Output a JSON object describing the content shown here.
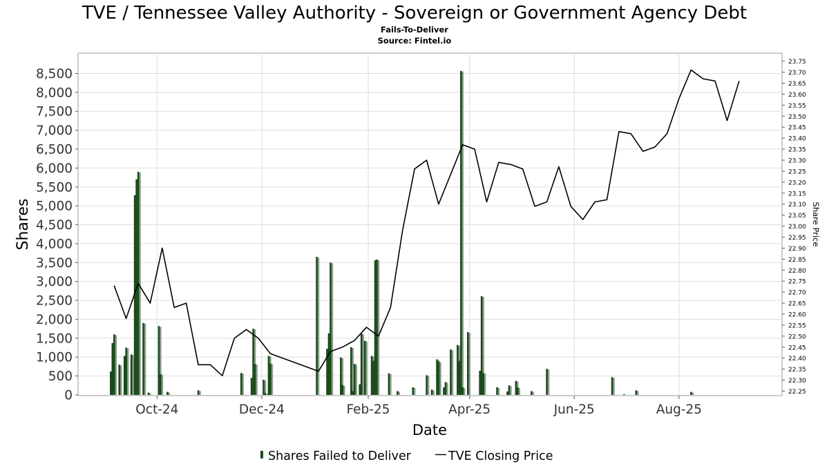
{
  "chart_data": {
    "type": "bar",
    "title": "TVE / Tennessee Valley Authority - Sovereign or Government Agency Debt",
    "subtitle": "Fails-To-Deliver",
    "source": "Source: Fintel.io",
    "xlabel": "Date",
    "ylabel": "Shares",
    "y2label": "Share Price",
    "ylim": [
      0,
      8900
    ],
    "y2lim": [
      22.24,
      23.76
    ],
    "grid": true,
    "legend_placement": "bottom-center",
    "x_range": [
      "2024-08-16",
      "2025-09-30"
    ],
    "x_ticks": [
      {
        "date": "2024-10-01",
        "label": "Oct-24"
      },
      {
        "date": "2024-12-01",
        "label": "Dec-24"
      },
      {
        "date": "2025-02-01",
        "label": "Feb-25"
      },
      {
        "date": "2025-04-01",
        "label": "Apr-25"
      },
      {
        "date": "2025-06-01",
        "label": "Jun-25"
      },
      {
        "date": "2025-08-01",
        "label": "Aug-25"
      }
    ],
    "y_ticks": [
      0,
      500,
      1000,
      1500,
      2000,
      2500,
      3000,
      3500,
      4000,
      4500,
      5000,
      5500,
      6000,
      6500,
      7000,
      7500,
      8000,
      8500
    ],
    "y_tick_labels": [
      "0",
      "500",
      "1,000",
      "1,500",
      "2,000",
      "2,500",
      "3,000",
      "3,500",
      "4,000",
      "4,500",
      "5,000",
      "5,500",
      "6,000",
      "6,500",
      "7,000",
      "7,500",
      "8,000",
      "8,500"
    ],
    "y2_ticks": [
      "22.25",
      "22.30",
      "22.35",
      "22.40",
      "22.45",
      "22.50",
      "22.55",
      "22.60",
      "22.65",
      "22.70",
      "22.75",
      "22.80",
      "22.85",
      "22.90",
      "22.95",
      "23.00",
      "23.05",
      "23.10",
      "23.15",
      "23.20",
      "23.25",
      "23.30",
      "23.35",
      "23.40",
      "23.45",
      "23.50",
      "23.55",
      "23.60",
      "23.65",
      "23.70",
      "23.75"
    ],
    "colors": {
      "bar": "#1a4a1a",
      "bar_shadow": "#8a9a8a",
      "line": "#000000",
      "grid": "#dedede"
    },
    "series": [
      {
        "name": "Shares Failed to Deliver",
        "type": "bar",
        "points": [
          {
            "x": "2024-09-04",
            "y": 620
          },
          {
            "x": "2024-09-05",
            "y": 1370
          },
          {
            "x": "2024-09-06",
            "y": 1600
          },
          {
            "x": "2024-09-09",
            "y": 800
          },
          {
            "x": "2024-09-12",
            "y": 1030
          },
          {
            "x": "2024-09-13",
            "y": 1250
          },
          {
            "x": "2024-09-16",
            "y": 1070
          },
          {
            "x": "2024-09-18",
            "y": 5280
          },
          {
            "x": "2024-09-19",
            "y": 5700
          },
          {
            "x": "2024-09-20",
            "y": 5900
          },
          {
            "x": "2024-09-23",
            "y": 1900
          },
          {
            "x": "2024-09-26",
            "y": 60
          },
          {
            "x": "2024-10-02",
            "y": 1820
          },
          {
            "x": "2024-10-03",
            "y": 550
          },
          {
            "x": "2024-10-07",
            "y": 80
          },
          {
            "x": "2024-10-25",
            "y": 120
          },
          {
            "x": "2024-11-19",
            "y": 580
          },
          {
            "x": "2024-11-25",
            "y": 450
          },
          {
            "x": "2024-11-26",
            "y": 1750
          },
          {
            "x": "2024-11-27",
            "y": 820
          },
          {
            "x": "2024-12-02",
            "y": 400
          },
          {
            "x": "2024-12-03",
            "y": 50
          },
          {
            "x": "2024-12-05",
            "y": 1030
          },
          {
            "x": "2024-12-06",
            "y": 830
          },
          {
            "x": "2025-01-02",
            "y": 3650
          },
          {
            "x": "2025-01-08",
            "y": 1220
          },
          {
            "x": "2025-01-09",
            "y": 1630
          },
          {
            "x": "2025-01-10",
            "y": 3500
          },
          {
            "x": "2025-01-16",
            "y": 990
          },
          {
            "x": "2025-01-17",
            "y": 260
          },
          {
            "x": "2025-01-22",
            "y": 1260
          },
          {
            "x": "2025-01-23",
            "y": 100
          },
          {
            "x": "2025-01-24",
            "y": 820
          },
          {
            "x": "2025-01-27",
            "y": 280
          },
          {
            "x": "2025-01-28",
            "y": 1620
          },
          {
            "x": "2025-01-30",
            "y": 1430
          },
          {
            "x": "2025-02-03",
            "y": 1030
          },
          {
            "x": "2025-02-04",
            "y": 900
          },
          {
            "x": "2025-02-05",
            "y": 3560
          },
          {
            "x": "2025-02-06",
            "y": 3580
          },
          {
            "x": "2025-02-13",
            "y": 570
          },
          {
            "x": "2025-02-18",
            "y": 100
          },
          {
            "x": "2025-02-27",
            "y": 200
          },
          {
            "x": "2025-03-07",
            "y": 520
          },
          {
            "x": "2025-03-10",
            "y": 140
          },
          {
            "x": "2025-03-13",
            "y": 940
          },
          {
            "x": "2025-03-14",
            "y": 880
          },
          {
            "x": "2025-03-17",
            "y": 200
          },
          {
            "x": "2025-03-18",
            "y": 340
          },
          {
            "x": "2025-03-21",
            "y": 1200
          },
          {
            "x": "2025-03-25",
            "y": 1320
          },
          {
            "x": "2025-03-26",
            "y": 900
          },
          {
            "x": "2025-03-27",
            "y": 8570
          },
          {
            "x": "2025-03-28",
            "y": 200
          },
          {
            "x": "2025-03-31",
            "y": 1660
          },
          {
            "x": "2025-04-07",
            "y": 640
          },
          {
            "x": "2025-04-08",
            "y": 2610
          },
          {
            "x": "2025-04-09",
            "y": 580
          },
          {
            "x": "2025-04-17",
            "y": 200
          },
          {
            "x": "2025-04-23",
            "y": 90
          },
          {
            "x": "2025-04-24",
            "y": 250
          },
          {
            "x": "2025-04-28",
            "y": 370
          },
          {
            "x": "2025-04-29",
            "y": 200
          },
          {
            "x": "2025-05-07",
            "y": 100
          },
          {
            "x": "2025-05-16",
            "y": 690
          },
          {
            "x": "2025-06-23",
            "y": 470
          },
          {
            "x": "2025-06-30",
            "y": 20
          },
          {
            "x": "2025-07-07",
            "y": 120
          },
          {
            "x": "2025-08-08",
            "y": 80
          }
        ]
      },
      {
        "name": "TVE Closing Price",
        "type": "line",
        "points": [
          {
            "x": "2024-09-06",
            "y": 22.73
          },
          {
            "x": "2024-09-13",
            "y": 22.58
          },
          {
            "x": "2024-09-20",
            "y": 22.74
          },
          {
            "x": "2024-09-27",
            "y": 22.65
          },
          {
            "x": "2024-10-04",
            "y": 22.9
          },
          {
            "x": "2024-10-11",
            "y": 22.63
          },
          {
            "x": "2024-10-18",
            "y": 22.65
          },
          {
            "x": "2024-10-25",
            "y": 22.37
          },
          {
            "x": "2024-11-01",
            "y": 22.37
          },
          {
            "x": "2024-11-08",
            "y": 22.32
          },
          {
            "x": "2024-11-15",
            "y": 22.49
          },
          {
            "x": "2024-11-22",
            "y": 22.53
          },
          {
            "x": "2024-11-29",
            "y": 22.49
          },
          {
            "x": "2024-12-06",
            "y": 22.42
          },
          {
            "x": "2025-01-03",
            "y": 22.34
          },
          {
            "x": "2025-01-10",
            "y": 22.43
          },
          {
            "x": "2025-01-17",
            "y": 22.45
          },
          {
            "x": "2025-01-24",
            "y": 22.48
          },
          {
            "x": "2025-01-31",
            "y": 22.54
          },
          {
            "x": "2025-02-07",
            "y": 22.5
          },
          {
            "x": "2025-02-14",
            "y": 22.63
          },
          {
            "x": "2025-02-21",
            "y": 22.98
          },
          {
            "x": "2025-02-28",
            "y": 23.26
          },
          {
            "x": "2025-03-07",
            "y": 23.3
          },
          {
            "x": "2025-03-14",
            "y": 23.1
          },
          {
            "x": "2025-03-28",
            "y": 23.37
          },
          {
            "x": "2025-04-04",
            "y": 23.35
          },
          {
            "x": "2025-04-11",
            "y": 23.11
          },
          {
            "x": "2025-04-18",
            "y": 23.29
          },
          {
            "x": "2025-04-25",
            "y": 23.28
          },
          {
            "x": "2025-05-02",
            "y": 23.26
          },
          {
            "x": "2025-05-09",
            "y": 23.09
          },
          {
            "x": "2025-05-16",
            "y": 23.11
          },
          {
            "x": "2025-05-23",
            "y": 23.27
          },
          {
            "x": "2025-05-30",
            "y": 23.09
          },
          {
            "x": "2025-06-06",
            "y": 23.03
          },
          {
            "x": "2025-06-13",
            "y": 23.11
          },
          {
            "x": "2025-06-20",
            "y": 23.12
          },
          {
            "x": "2025-06-27",
            "y": 23.43
          },
          {
            "x": "2025-07-04",
            "y": 23.42
          },
          {
            "x": "2025-07-11",
            "y": 23.34
          },
          {
            "x": "2025-07-18",
            "y": 23.36
          },
          {
            "x": "2025-07-25",
            "y": 23.42
          },
          {
            "x": "2025-08-01",
            "y": 23.58
          },
          {
            "x": "2025-08-08",
            "y": 23.71
          },
          {
            "x": "2025-08-15",
            "y": 23.67
          },
          {
            "x": "2025-08-22",
            "y": 23.66
          },
          {
            "x": "2025-08-29",
            "y": 23.48
          },
          {
            "x": "2025-09-05",
            "y": 23.66
          }
        ]
      }
    ]
  }
}
